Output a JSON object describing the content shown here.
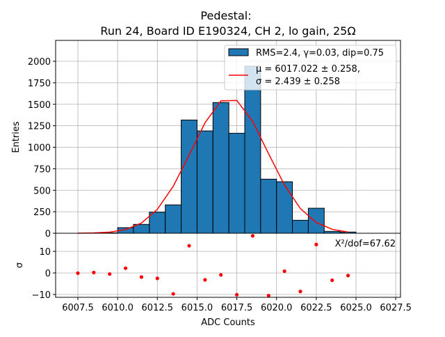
{
  "chart_data": [
    {
      "type": "bar",
      "panel": "histogram",
      "title_line1": "Pedestal:",
      "title_line2": "Run 24, Board ID E190324, CH 2, lo gain, 25Ω",
      "xlabel": "ADC Counts",
      "ylabel": "Entries",
      "xlim": [
        6006.1,
        6027.8
      ],
      "ylim": [
        0,
        2243
      ],
      "xticks": [
        6007.5,
        6010.0,
        6012.5,
        6015.0,
        6017.5,
        6020.0,
        6022.5,
        6025.0,
        6027.5
      ],
      "xtick_labels": [
        "6007.5",
        "6010.0",
        "6012.5",
        "6015.0",
        "6017.5",
        "6020.0",
        "6022.5",
        "6025.0",
        "6027.5"
      ],
      "yticks": [
        0,
        250,
        500,
        750,
        1000,
        1250,
        1500,
        1750,
        2000
      ],
      "ytick_labels": [
        "0",
        "250",
        "500",
        "750",
        "1000",
        "1250",
        "1500",
        "1750",
        "2000"
      ],
      "grid": true,
      "bin_edges": [
        6009,
        6010,
        6011,
        6012,
        6013,
        6014,
        6015,
        6016,
        6017,
        6018,
        6019,
        6020,
        6021,
        6022,
        6023,
        6024,
        6025
      ],
      "counts": [
        5,
        65,
        103,
        245,
        330,
        1317,
        1190,
        1520,
        1163,
        1943,
        629,
        599,
        151,
        291,
        22,
        14
      ],
      "bar_color": "#1f77b4",
      "fit": {
        "x": [
          6007.5,
          6008.5,
          6009.5,
          6010.5,
          6011.5,
          6012.5,
          6013.5,
          6014.5,
          6015.5,
          6016.5,
          6017.5,
          6018.5,
          6019.5,
          6020.5,
          6021.5,
          6022.5,
          6023.5,
          6024.5
        ],
        "y": [
          1,
          4,
          13,
          43,
          119,
          278,
          546,
          909,
          1285,
          1540,
          1545,
          1300,
          925,
          561,
          287,
          125,
          46,
          14
        ],
        "color": "#ff0000"
      },
      "legend": {
        "placement": "top-right",
        "entries": [
          "RMS=2.4, γ=0.03, dip=0.75",
          "μ = 6017.022 ± 0.258,",
          "σ = 2.439 ± 0.258"
        ]
      }
    },
    {
      "type": "scatter",
      "panel": "residuals",
      "ylabel": "σ",
      "ylim": [
        -11.3,
        18.4
      ],
      "yticks": [
        -10,
        0,
        10
      ],
      "ytick_labels": [
        "−10",
        "0",
        "10"
      ],
      "x": [
        6007.5,
        6008.5,
        6009.5,
        6010.5,
        6011.5,
        6012.5,
        6013.5,
        6014.5,
        6015.5,
        6016.5,
        6017.5,
        6018.5,
        6019.5,
        6020.5,
        6021.5,
        6022.5,
        6023.5,
        6024.5
      ],
      "y": [
        -0.1,
        0.2,
        -0.5,
        2.2,
        -1.9,
        -2.5,
        -9.7,
        12.6,
        -3.2,
        -0.9,
        -10.1,
        17.2,
        -10.5,
        0.8,
        -8.6,
        13.2,
        -3.4,
        -1.2
      ],
      "color": "#ff0000",
      "annotation": "X²/dof=67.62"
    }
  ]
}
